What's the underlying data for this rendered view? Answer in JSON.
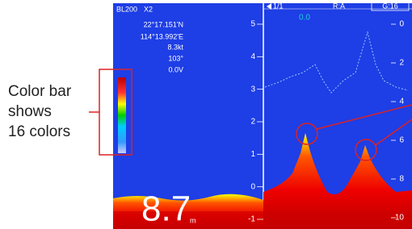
{
  "annotation": {
    "lines": [
      "Color bar",
      "shows",
      "16 colors"
    ]
  },
  "status": {
    "model": "BL200",
    "zoom": "X2",
    "page": "1/1",
    "range_mode": "R:A",
    "gain": "G:16"
  },
  "nav": {
    "latitude": "22°17.151'N",
    "longitude": "114°13.992'E",
    "speed": "8.3kt",
    "heading": "103°",
    "voltage": "0.0V"
  },
  "depth": {
    "value": "8.7",
    "unit": "m"
  },
  "top_label": "0.0",
  "left_scale": [
    "5",
    "4",
    "3",
    "2",
    "1",
    "0",
    "-1"
  ],
  "right_scale": [
    "0",
    "2",
    "4",
    "6",
    "8",
    "10"
  ]
}
